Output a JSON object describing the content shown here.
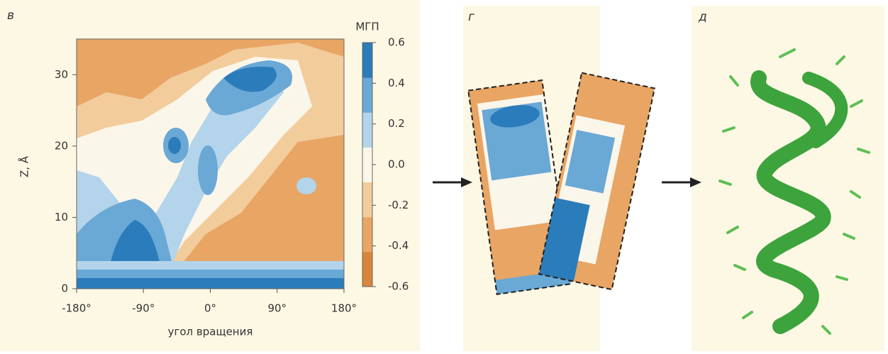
{
  "panel_labels": [
    "в",
    "г",
    "д"
  ],
  "chart_data": {
    "type": "contour",
    "xlabel": "угол вращения",
    "ylabel": "Z, Å",
    "xlim": [
      -180,
      180
    ],
    "xticks": [
      {
        "value": -180,
        "label": "-180°"
      },
      {
        "value": -90,
        "label": "-90°"
      },
      {
        "value": 0,
        "label": "0°"
      },
      {
        "value": 90,
        "label": "90°"
      },
      {
        "value": 180,
        "label": "180°"
      }
    ],
    "ylim": [
      0,
      35
    ],
    "yticks": [
      0,
      10,
      20,
      30
    ],
    "colorbar": {
      "label": "МГП",
      "lim": [
        -0.6,
        0.6
      ],
      "ticks": [
        0.6,
        0.4,
        0.2,
        {
          "value": 0,
          "label": "0.0"
        },
        -0.2,
        -0.4,
        -0.6
      ],
      "colors": [
        "#d9843c",
        "#e8a564",
        "#f3cc9c",
        "#fbf6ea",
        "#b3d4ea",
        "#6aa8d6",
        "#2b7cba"
      ]
    }
  }
}
